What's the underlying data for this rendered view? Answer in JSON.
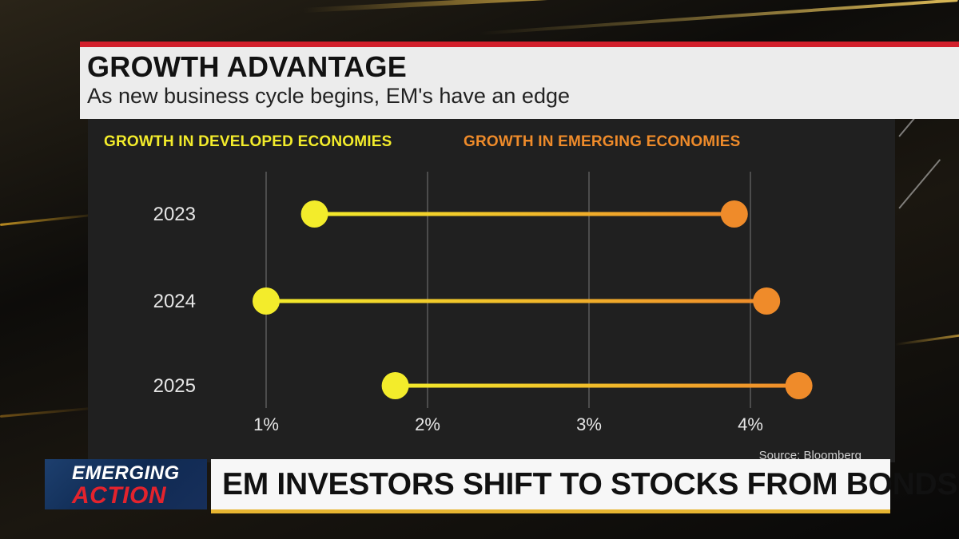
{
  "header": {
    "title": "GROWTH ADVANTAGE",
    "subtitle": "As new business cycle begins, EM's have an edge"
  },
  "legend": {
    "developed": "GROWTH IN DEVELOPED ECONOMIES",
    "emerging": "GROWTH IN EMERGING ECONOMIES"
  },
  "colors": {
    "developed": "#f3ec2b",
    "emerging": "#ef8b2a",
    "accent_red": "#d21f2b",
    "accent_gold": "#e7b531"
  },
  "chart_data": {
    "type": "dumbbell",
    "categories": [
      "2023",
      "2024",
      "2025"
    ],
    "series": [
      {
        "name": "GROWTH IN DEVELOPED ECONOMIES",
        "values": [
          1.3,
          1.0,
          1.8
        ]
      },
      {
        "name": "GROWTH IN EMERGING ECONOMIES",
        "values": [
          3.9,
          4.1,
          4.3
        ]
      }
    ],
    "x_ticks": [
      "1%",
      "2%",
      "3%",
      "4%"
    ],
    "x_tick_values": [
      1,
      2,
      3,
      4
    ],
    "xlim": [
      1,
      4
    ],
    "grid": "vertical",
    "legend_position": "top"
  },
  "source": "Source: Bloomberg",
  "ticker": {
    "show_line1": "EMERGING",
    "show_line2": "ACTION",
    "headline": "EM INVESTORS SHIFT TO STOCKS FROM BONDS"
  }
}
